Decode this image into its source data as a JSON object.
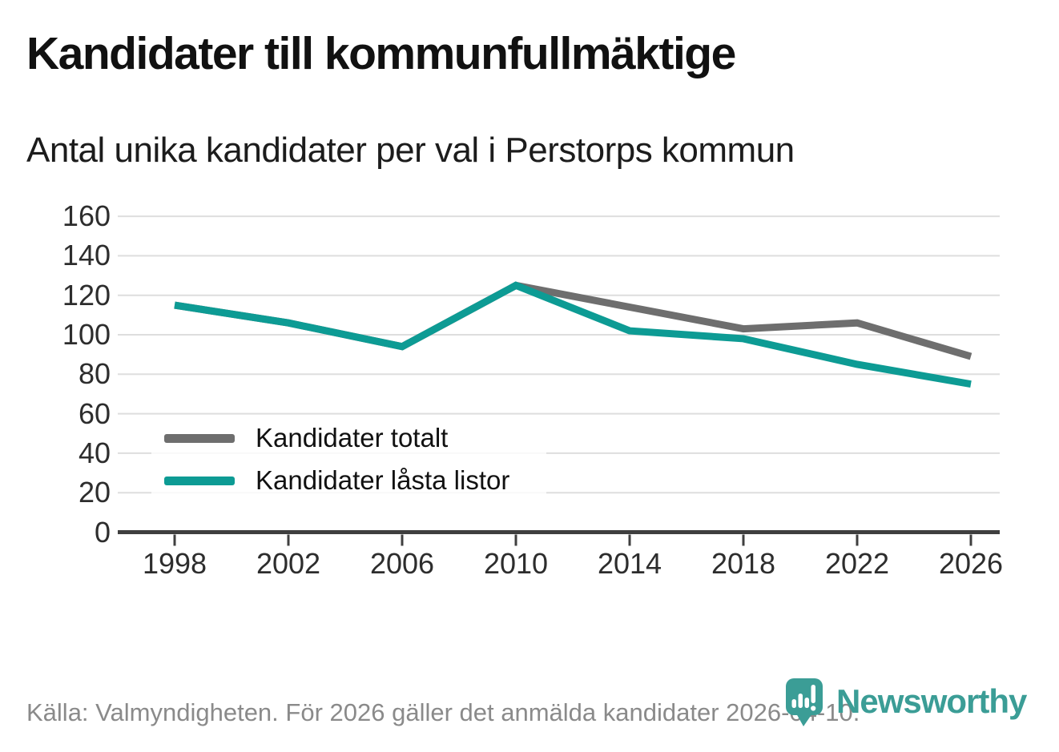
{
  "title": "Kandidater till kommunfullmäktige",
  "subtitle": "Antal unika kandidater per val i Perstorps kommun",
  "footer": {
    "source": "Källa: Valmyndigheten. För 2026 gäller det anmälda kandidater 2026-04-10."
  },
  "branding": {
    "name": "Newsworthy",
    "logo_icon": "newsworthy-pin-barchart-icon",
    "color": "#3b9d96"
  },
  "colors": {
    "series_total": "#6e6e6e",
    "series_locked": "#0d9b94",
    "gridline": "#dedede",
    "axis": "#3f3f3f",
    "tick_label": "#2d2d2d",
    "title_text": "#111111",
    "muted_text": "#8a8a8a"
  },
  "chart_data": {
    "type": "line",
    "categories": [
      "1998",
      "2002",
      "2006",
      "2010",
      "2014",
      "2018",
      "2022",
      "2026"
    ],
    "series": [
      {
        "name": "Kandidater totalt",
        "color": "#6e6e6e",
        "values": [
          115,
          106,
          94,
          125,
          114,
          103,
          106,
          89
        ]
      },
      {
        "name": "Kandidater låsta listor",
        "color": "#0d9b94",
        "values": [
          115,
          106,
          94,
          125,
          102,
          98,
          85,
          75
        ]
      }
    ],
    "title": "Kandidater till kommunfullmäktige",
    "subtitle": "Antal unika kandidater per val i Perstorps kommun",
    "xlabel": "",
    "ylabel": "",
    "yticks": [
      0,
      20,
      40,
      60,
      80,
      100,
      120,
      140,
      160
    ],
    "ylim": [
      0,
      160
    ],
    "grid": "horizontal",
    "legend_position": "inside-bottom-left"
  }
}
